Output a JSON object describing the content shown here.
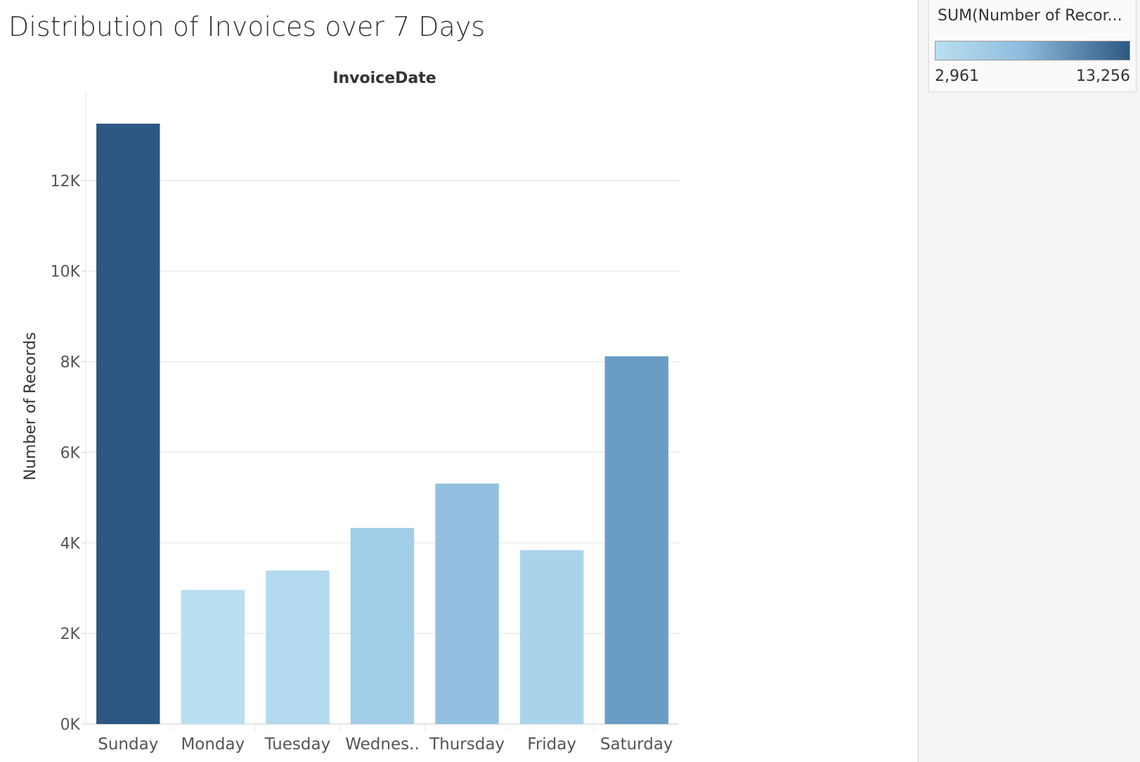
{
  "page": {
    "title": "Distribution of Invoices over 7 Days"
  },
  "legend": {
    "title": "SUM(Number of Recor...",
    "min_label": "2,961",
    "max_label": "13,256",
    "min_value": 2961,
    "max_value": 13256,
    "color_low": "#b9dff1",
    "color_high": "#2c5883"
  },
  "chart_data": {
    "type": "bar",
    "title": "",
    "xlabel": "InvoiceDate",
    "ylabel": "Number of Records",
    "categories": [
      "Sunday",
      "Monday",
      "Tuesday",
      "Wednes..",
      "Thursday",
      "Friday",
      "Saturday"
    ],
    "values": [
      13256,
      2961,
      3390,
      4330,
      5310,
      3840,
      8120
    ],
    "colors": [
      "#2c5883",
      "#b9dff1",
      "#b2d9ee",
      "#a2cde7",
      "#93c0e0",
      "#a9d3eb",
      "#6a9dc5"
    ],
    "ylim": [
      0,
      14000
    ],
    "yticks": [
      0,
      2000,
      4000,
      6000,
      8000,
      10000,
      12000
    ],
    "ytick_labels": [
      "0K",
      "2K",
      "4K",
      "6K",
      "8K",
      "10K",
      "12K"
    ],
    "grid": true
  }
}
